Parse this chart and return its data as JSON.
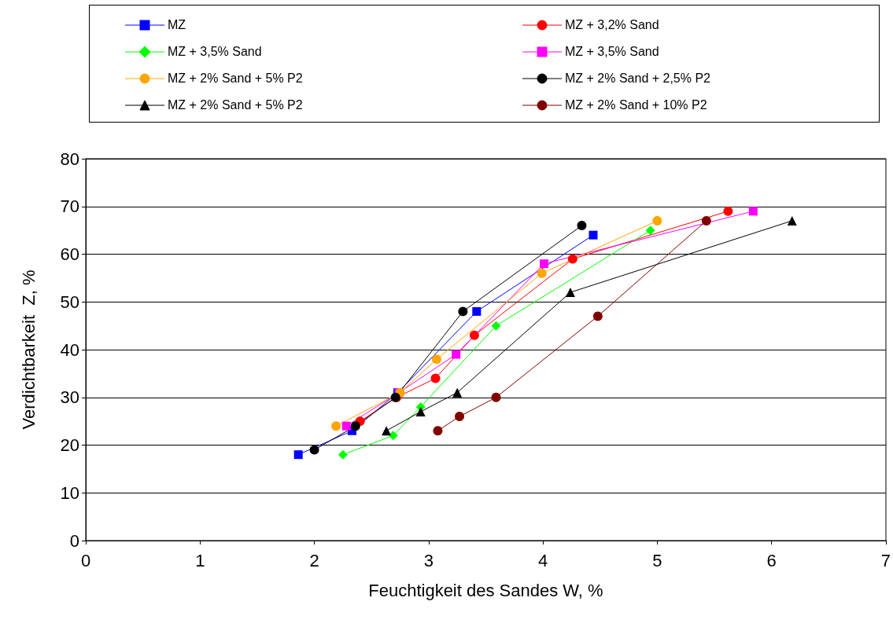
{
  "chart_data": {
    "type": "line",
    "xlabel": "Feuchtigkeit des Sandes W, %",
    "ylabel": "Verdichtbarkeit  Z, %",
    "xlim": [
      0,
      7
    ],
    "xticks": [
      0,
      1,
      2,
      3,
      4,
      5,
      6,
      7
    ],
    "ylim": [
      0,
      80
    ],
    "yticks": [
      0,
      10,
      20,
      30,
      40,
      50,
      60,
      70,
      80
    ],
    "grid": "y",
    "legend": "top",
    "line_style": "solid",
    "series": [
      {
        "name": "MZ",
        "color": "#0000ff",
        "marker": "square",
        "x": [
          1.86,
          2.33,
          2.73,
          3.42,
          4.44
        ],
        "values": [
          18,
          23,
          31,
          48,
          64
        ]
      },
      {
        "name": "MZ + 3,2% Sand",
        "color": "#ff0000",
        "marker": "circle",
        "x": [
          2.4,
          2.72,
          3.06,
          3.4,
          4.26,
          5.62
        ],
        "values": [
          25,
          30,
          34,
          43,
          59,
          69
        ]
      },
      {
        "name": "MZ + 3,5% Sand",
        "color": "#00ff00",
        "marker": "diamond",
        "x": [
          2.25,
          2.69,
          2.93,
          3.59,
          4.94
        ],
        "values": [
          18,
          22,
          28,
          45,
          65
        ]
      },
      {
        "name": "MZ + 3,5% Sand",
        "color": "#ff00ff",
        "marker": "square",
        "x": [
          2.28,
          2.74,
          3.24,
          4.01,
          5.84
        ],
        "values": [
          24,
          31,
          39,
          58,
          69
        ]
      },
      {
        "name": "MZ + 2% Sand + 5% P2",
        "color": "#ffa500",
        "marker": "circle",
        "x": [
          2.19,
          2.75,
          3.07,
          3.99,
          5.0
        ],
        "values": [
          24,
          31,
          38,
          56,
          67
        ]
      },
      {
        "name": "MZ + 2% Sand + 2,5% P2",
        "color": "#000000",
        "marker": "circle",
        "x": [
          2.0,
          2.36,
          2.71,
          3.3,
          4.34
        ],
        "values": [
          19,
          24,
          30,
          48,
          66
        ]
      },
      {
        "name": "MZ + 2% Sand + 5% P2",
        "color": "#000000",
        "marker": "triangle",
        "x": [
          2.63,
          2.93,
          3.25,
          4.24,
          6.18
        ],
        "values": [
          23,
          27,
          31,
          52,
          67
        ]
      },
      {
        "name": "MZ + 2% Sand + 10% P2",
        "color": "#800000",
        "marker": "circle",
        "x": [
          3.08,
          3.27,
          3.59,
          4.48,
          5.43
        ],
        "values": [
          23,
          26,
          30,
          47,
          67
        ]
      }
    ]
  }
}
